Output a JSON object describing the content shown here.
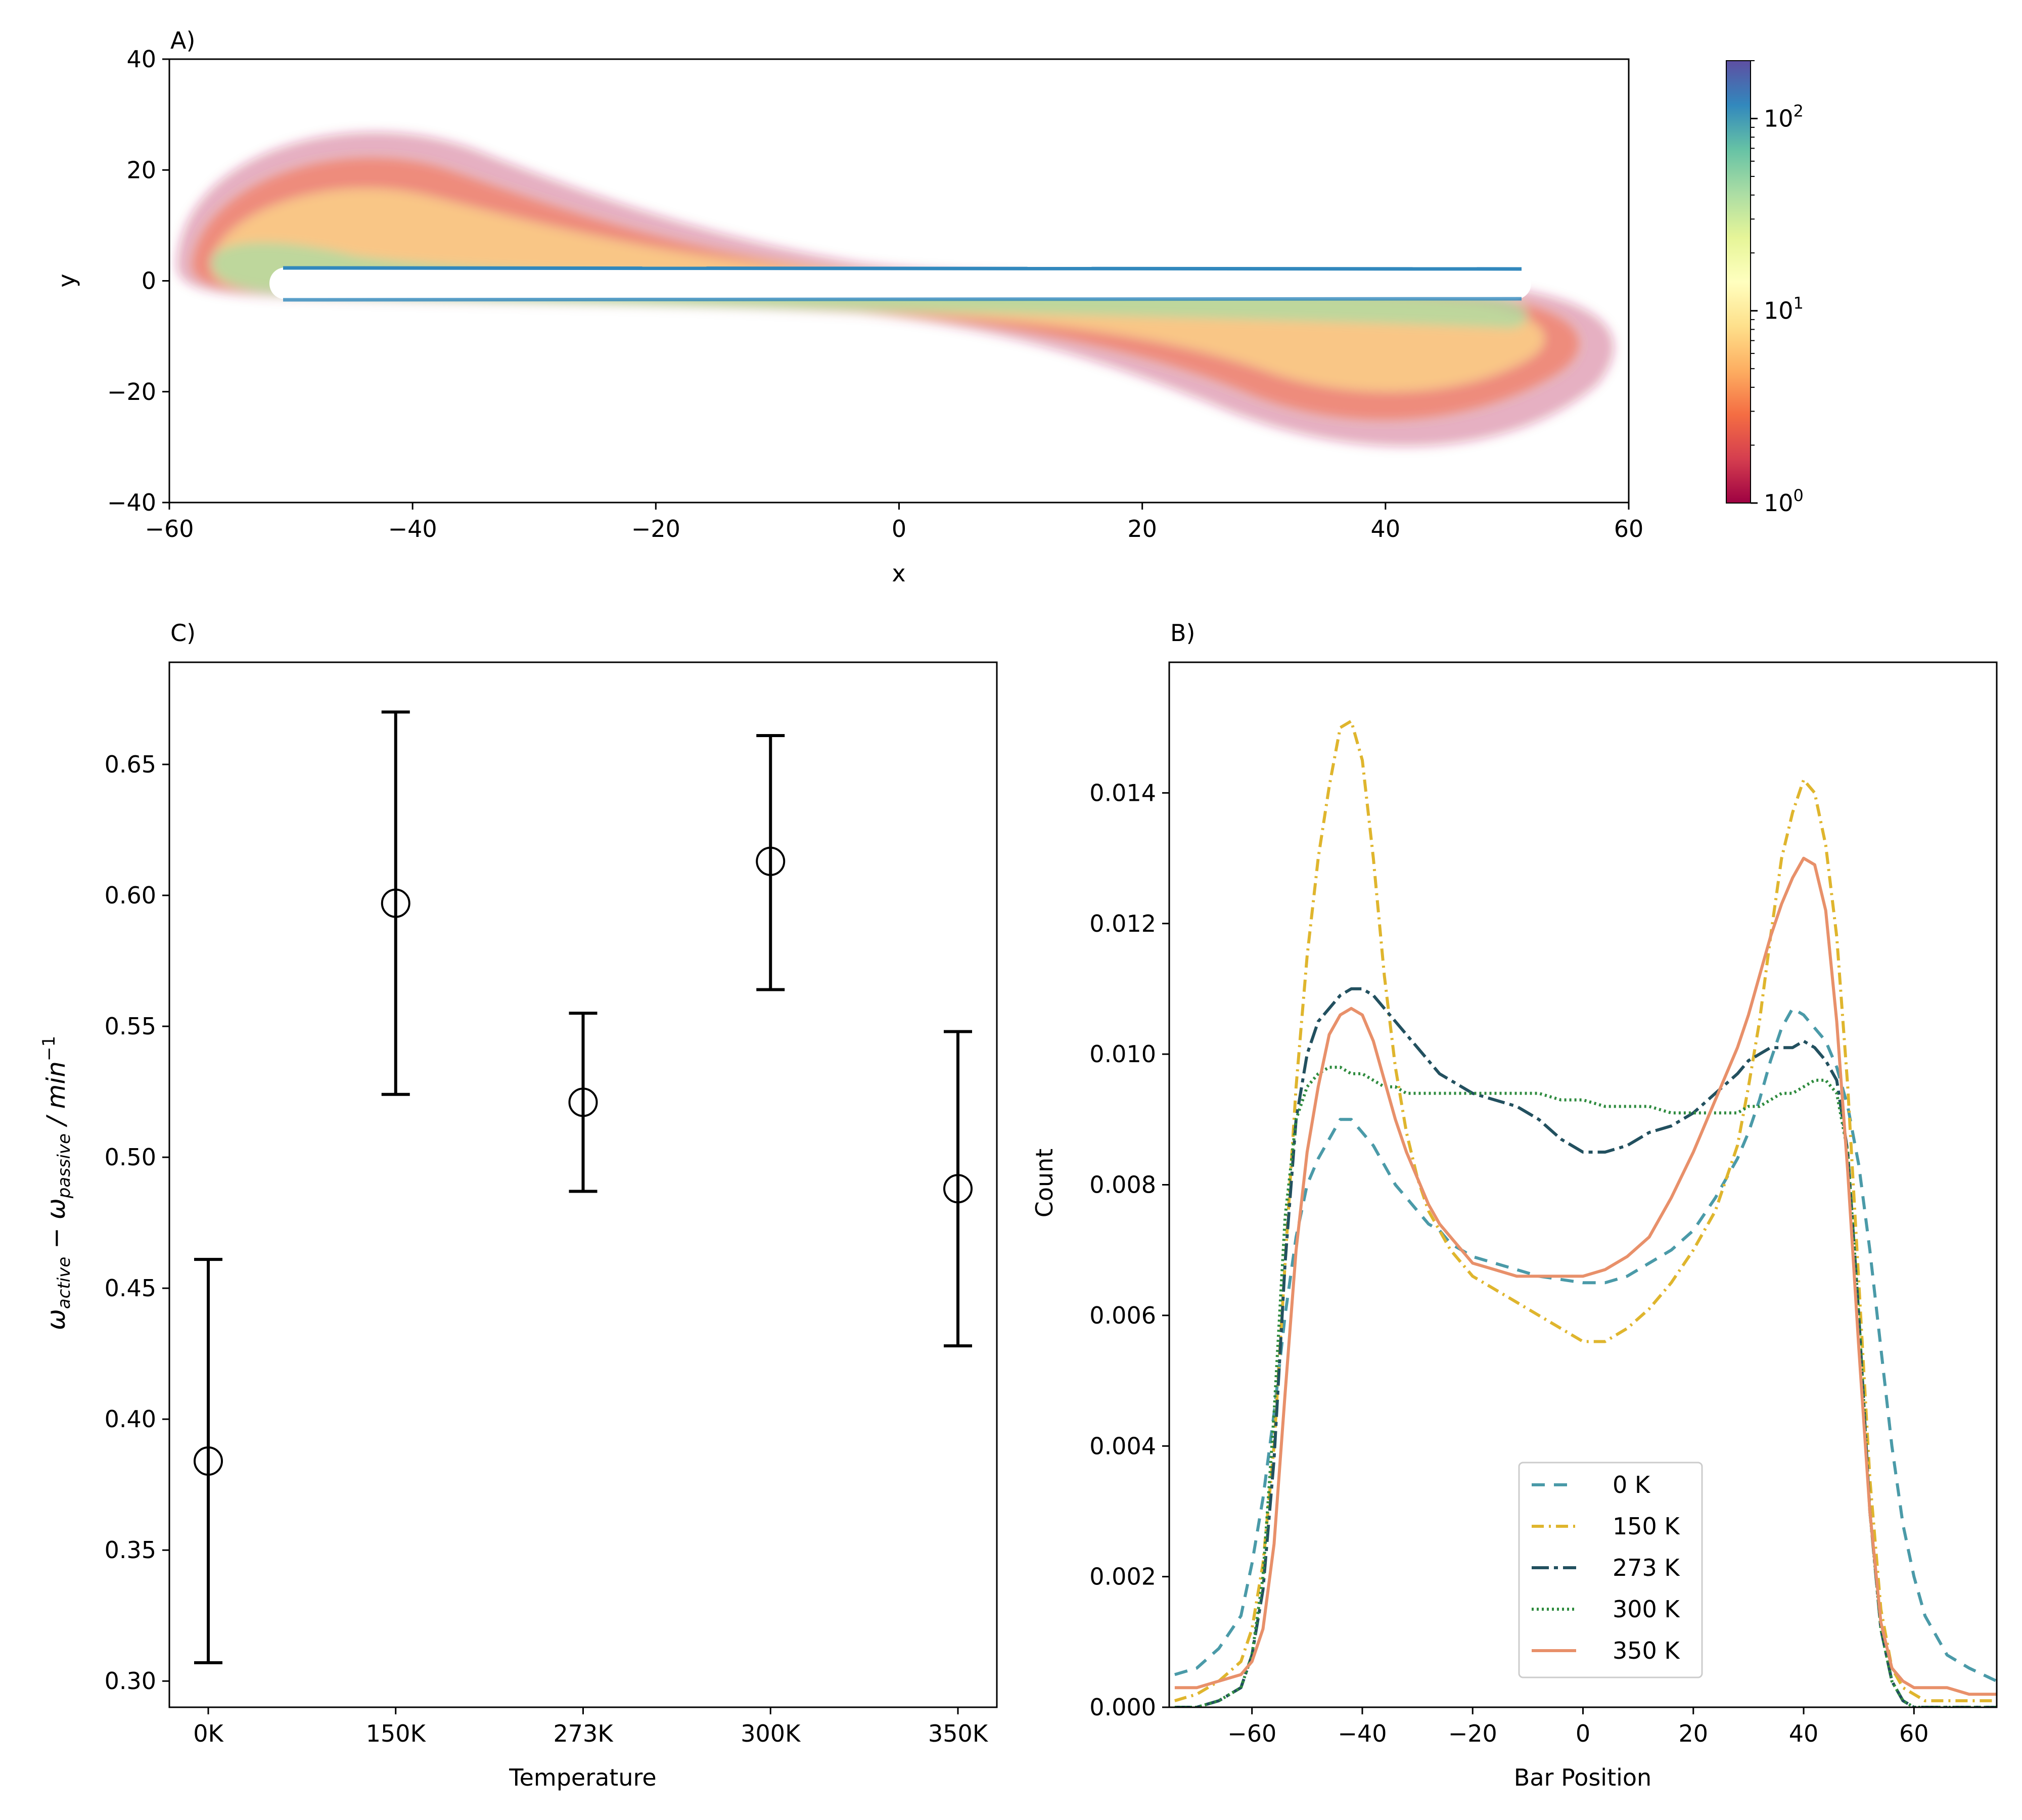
{
  "chart_data": [
    {
      "panel": "A)",
      "type": "heatmap",
      "xlabel": "x",
      "ylabel": "y",
      "xlim": [
        -60,
        60
      ],
      "ylim": [
        -40,
        40
      ],
      "xticks": [
        -60,
        -40,
        -20,
        0,
        20,
        40,
        60
      ],
      "yticks": [
        -40,
        -20,
        0,
        20,
        40
      ],
      "colorbar": {
        "scale": "log",
        "range": [
          1,
          200
        ],
        "ticks": [
          {
            "value": 1,
            "base": "10",
            "exp": "0"
          },
          {
            "value": 10,
            "base": "10",
            "exp": "1"
          },
          {
            "value": 100,
            "base": "10",
            "exp": "2"
          }
        ]
      },
      "colors": [
        "#9e0142",
        "#d53e4f",
        "#f46d43",
        "#fdae61",
        "#fee08b",
        "#ffffbf",
        "#e6f598",
        "#abdda4",
        "#66c2a5",
        "#3288bd",
        "#5e4fa2"
      ]
    },
    {
      "panel": "C)",
      "type": "scatter",
      "xlabel": "Temperature",
      "ylabel": {
        "symbol": "ω",
        "sub1": "active",
        "minus": " − ",
        "sub2": "passive",
        "unit": " / min",
        "sup": "−1"
      },
      "categories": [
        "0K",
        "150K",
        "273K",
        "300K",
        "350K"
      ],
      "values": [
        0.384,
        0.597,
        0.521,
        0.613,
        0.488
      ],
      "err_low": [
        0.307,
        0.524,
        0.487,
        0.564,
        0.428
      ],
      "err_high": [
        0.461,
        0.67,
        0.555,
        0.661,
        0.548
      ],
      "ylim": [
        0.29,
        0.689
      ],
      "yticks": [
        0.3,
        0.35,
        0.4,
        0.45,
        0.5,
        0.55,
        0.6,
        0.65
      ],
      "ytick_labels": [
        "0.30",
        "0.35",
        "0.40",
        "0.45",
        "0.50",
        "0.55",
        "0.60",
        "0.65"
      ]
    },
    {
      "panel": "B)",
      "type": "line",
      "xlabel": "Bar Position",
      "ylabel": "Count",
      "xlim": [
        -75,
        75
      ],
      "ylim": [
        0,
        0.016
      ],
      "xticks": [
        -60,
        -40,
        -20,
        0,
        20,
        40,
        60
      ],
      "yticks": [
        0,
        0.002,
        0.004,
        0.006,
        0.008,
        0.01,
        0.012,
        0.014
      ],
      "ytick_labels": [
        "0.000",
        "0.002",
        "0.004",
        "0.006",
        "0.008",
        "0.010",
        "0.012",
        "0.014"
      ],
      "legend_position": "lower-center",
      "x": [
        -74,
        -70,
        -66,
        -62,
        -60,
        -58,
        -56,
        -54,
        -52,
        -50,
        -48,
        -46,
        -44,
        -42,
        -40,
        -38,
        -36,
        -34,
        -32,
        -30,
        -28,
        -26,
        -24,
        -22,
        -20,
        -16,
        -12,
        -8,
        -4,
        0,
        4,
        8,
        12,
        16,
        20,
        24,
        28,
        30,
        32,
        34,
        36,
        38,
        40,
        42,
        44,
        46,
        48,
        50,
        52,
        54,
        56,
        58,
        60,
        62,
        66,
        70,
        75
      ],
      "series": [
        {
          "name": "0 K",
          "color": "#4a9aa8",
          "dash": "26 18",
          "values": [
            0.0005,
            0.0006,
            0.0009,
            0.0014,
            0.0022,
            0.0032,
            0.0045,
            0.006,
            0.0072,
            0.008,
            0.0084,
            0.0087,
            0.009,
            0.009,
            0.0088,
            0.0086,
            0.0083,
            0.008,
            0.0078,
            0.0076,
            0.0074,
            0.0073,
            0.0071,
            0.007,
            0.0069,
            0.0068,
            0.0067,
            0.0066,
            0.00655,
            0.0065,
            0.0065,
            0.0066,
            0.0068,
            0.007,
            0.0073,
            0.0078,
            0.0084,
            0.0088,
            0.0093,
            0.0099,
            0.0104,
            0.0107,
            0.0106,
            0.0104,
            0.0102,
            0.0098,
            0.0092,
            0.0083,
            0.007,
            0.0055,
            0.004,
            0.0028,
            0.002,
            0.0014,
            0.0008,
            0.0006,
            0.0004
          ]
        },
        {
          "name": "150 K",
          "color": "#dfb52d",
          "dash": "24 10 4 10",
          "values": [
            0.0001,
            0.0002,
            0.0004,
            0.0007,
            0.0012,
            0.0022,
            0.004,
            0.0068,
            0.0095,
            0.0115,
            0.013,
            0.0141,
            0.015,
            0.0151,
            0.0145,
            0.013,
            0.0112,
            0.0098,
            0.0088,
            0.0081,
            0.0076,
            0.0073,
            0.007,
            0.0068,
            0.0066,
            0.0064,
            0.0062,
            0.006,
            0.0058,
            0.0056,
            0.0056,
            0.0058,
            0.0061,
            0.0065,
            0.007,
            0.0076,
            0.0086,
            0.0095,
            0.0105,
            0.0118,
            0.013,
            0.0137,
            0.0142,
            0.014,
            0.0132,
            0.0118,
            0.0095,
            0.0065,
            0.0035,
            0.0015,
            0.0006,
            0.0003,
            0.0002,
            0.0001,
            0.0001,
            0.0001,
            0.0001
          ]
        },
        {
          "name": "273 K",
          "color": "#22505f",
          "dash": "34 10 8 10",
          "values": [
            0.0,
            0.0,
            0.0001,
            0.0003,
            0.0008,
            0.0018,
            0.0038,
            0.0068,
            0.009,
            0.01,
            0.0105,
            0.0107,
            0.0109,
            0.011,
            0.011,
            0.0109,
            0.0107,
            0.0105,
            0.0103,
            0.0101,
            0.0099,
            0.0097,
            0.0096,
            0.0095,
            0.0094,
            0.0093,
            0.0092,
            0.009,
            0.0087,
            0.0085,
            0.0085,
            0.0086,
            0.0088,
            0.0089,
            0.0091,
            0.0094,
            0.0097,
            0.0099,
            0.01,
            0.0101,
            0.0101,
            0.0101,
            0.0102,
            0.0101,
            0.0099,
            0.0096,
            0.0085,
            0.006,
            0.003,
            0.0012,
            0.0004,
            0.0001,
            0.0,
            0.0,
            0.0,
            0.0,
            0.0
          ]
        },
        {
          "name": "300 K",
          "color": "#2e8b3e",
          "dash": "4 6",
          "values": [
            0.0,
            0.0,
            0.0001,
            0.0003,
            0.0008,
            0.002,
            0.0045,
            0.0075,
            0.009,
            0.0095,
            0.0097,
            0.0098,
            0.0098,
            0.0097,
            0.0097,
            0.0096,
            0.0095,
            0.0095,
            0.0094,
            0.0094,
            0.0094,
            0.0094,
            0.0094,
            0.0094,
            0.0094,
            0.0094,
            0.0094,
            0.0094,
            0.0093,
            0.0093,
            0.0092,
            0.0092,
            0.0092,
            0.0091,
            0.0091,
            0.0091,
            0.0091,
            0.0092,
            0.0092,
            0.0093,
            0.0094,
            0.0094,
            0.0095,
            0.0096,
            0.0096,
            0.0094,
            0.0085,
            0.006,
            0.003,
            0.0012,
            0.0004,
            0.0001,
            0.0,
            0.0,
            0.0,
            0.0,
            0.0
          ]
        },
        {
          "name": "350 K",
          "color": "#e8906a",
          "dash": "",
          "values": [
            0.0003,
            0.0003,
            0.0004,
            0.0005,
            0.0007,
            0.0012,
            0.0025,
            0.0048,
            0.007,
            0.0085,
            0.0095,
            0.0103,
            0.0106,
            0.0107,
            0.0106,
            0.0102,
            0.0096,
            0.009,
            0.0085,
            0.0081,
            0.0077,
            0.0074,
            0.0072,
            0.007,
            0.0068,
            0.0067,
            0.0066,
            0.0066,
            0.0066,
            0.0066,
            0.0067,
            0.0069,
            0.0072,
            0.0078,
            0.0085,
            0.0093,
            0.0101,
            0.0106,
            0.0112,
            0.0118,
            0.0123,
            0.0127,
            0.013,
            0.0129,
            0.0122,
            0.0105,
            0.0082,
            0.0055,
            0.003,
            0.0013,
            0.0006,
            0.0004,
            0.0003,
            0.0003,
            0.0003,
            0.0002,
            0.0002
          ]
        }
      ]
    }
  ]
}
